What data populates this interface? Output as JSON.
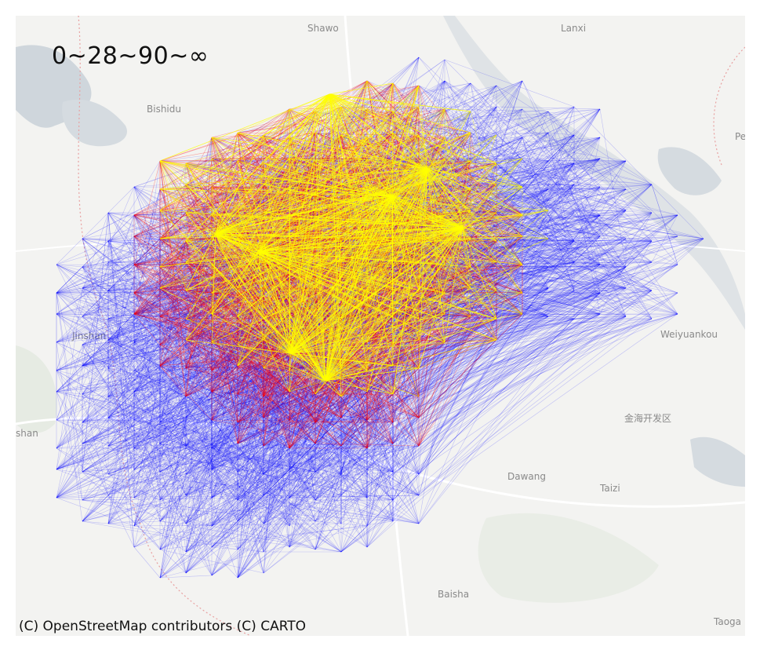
{
  "map": {
    "legend_label": "0~28~90~∞",
    "attribution": "(C) OpenStreetMap contributors (C) CARTO",
    "flow_colors": {
      "low": "#0000ff",
      "mid": "#ff0000",
      "high": "#ffff00"
    },
    "basemap_colors": {
      "land": "#f3f3f1",
      "water": "#cfd6dc",
      "green": "#e6ebe3",
      "road": "#ffffff",
      "boundary": "#e8a0a0"
    },
    "places": [
      {
        "id": "shawo",
        "name": "Shawo"
      },
      {
        "id": "lanxi",
        "name": "Lanxi"
      },
      {
        "id": "bishidu",
        "name": "Bishidu"
      },
      {
        "id": "pe",
        "name": "Pe"
      },
      {
        "id": "jinshan",
        "name": "Jinshan"
      },
      {
        "id": "weiyuankou",
        "name": "Weiyuankou"
      },
      {
        "id": "jinhai",
        "name": "金海开发区"
      },
      {
        "id": "shan",
        "name": "shan"
      },
      {
        "id": "dawang",
        "name": "Dawang"
      },
      {
        "id": "taizi",
        "name": "Taizi"
      },
      {
        "id": "baisha",
        "name": "Baisha"
      },
      {
        "id": "taoga",
        "name": "Taoga"
      }
    ]
  }
}
